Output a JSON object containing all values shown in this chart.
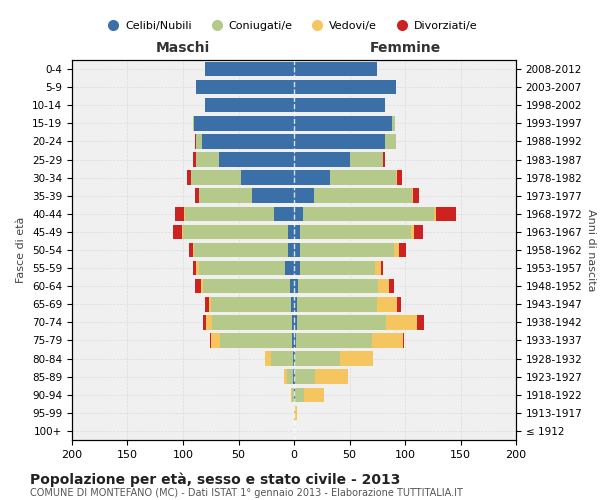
{
  "age_groups": [
    "100+",
    "95-99",
    "90-94",
    "85-89",
    "80-84",
    "75-79",
    "70-74",
    "65-69",
    "60-64",
    "55-59",
    "50-54",
    "45-49",
    "40-44",
    "35-39",
    "30-34",
    "25-29",
    "20-24",
    "15-19",
    "10-14",
    "5-9",
    "0-4"
  ],
  "birth_years": [
    "≤ 1912",
    "1913-1917",
    "1918-1922",
    "1923-1927",
    "1928-1932",
    "1933-1937",
    "1938-1942",
    "1943-1947",
    "1948-1952",
    "1953-1957",
    "1958-1962",
    "1963-1967",
    "1968-1972",
    "1973-1977",
    "1978-1982",
    "1983-1987",
    "1988-1992",
    "1993-1997",
    "1998-2002",
    "2003-2007",
    "2008-2012"
  ],
  "male": {
    "celibi": [
      0,
      0,
      0,
      1,
      1,
      2,
      2,
      3,
      4,
      8,
      5,
      5,
      18,
      38,
      48,
      68,
      83,
      90,
      80,
      88,
      80
    ],
    "coniugati": [
      0,
      0,
      2,
      5,
      20,
      65,
      72,
      72,
      78,
      78,
      85,
      95,
      80,
      48,
      45,
      20,
      5,
      1,
      0,
      0,
      0
    ],
    "vedovi": [
      0,
      0,
      1,
      3,
      5,
      8,
      5,
      2,
      2,
      2,
      1,
      1,
      1,
      0,
      0,
      0,
      0,
      0,
      0,
      0,
      0
    ],
    "divorziati": [
      0,
      0,
      0,
      0,
      0,
      1,
      3,
      3,
      5,
      3,
      4,
      8,
      8,
      3,
      3,
      3,
      1,
      0,
      0,
      0,
      0
    ]
  },
  "female": {
    "nubili": [
      0,
      0,
      1,
      1,
      1,
      2,
      3,
      3,
      4,
      5,
      5,
      5,
      8,
      18,
      32,
      50,
      82,
      88,
      82,
      92,
      75
    ],
    "coniugate": [
      0,
      1,
      8,
      18,
      40,
      68,
      80,
      72,
      72,
      68,
      85,
      100,
      118,
      88,
      60,
      30,
      10,
      3,
      0,
      0,
      0
    ],
    "vedove": [
      0,
      2,
      18,
      30,
      30,
      28,
      28,
      18,
      10,
      5,
      5,
      3,
      2,
      1,
      1,
      0,
      0,
      0,
      0,
      0,
      0
    ],
    "divorziate": [
      0,
      0,
      0,
      0,
      0,
      1,
      6,
      3,
      4,
      2,
      6,
      8,
      18,
      6,
      4,
      2,
      0,
      0,
      0,
      0,
      0
    ]
  },
  "colors": {
    "celibi": "#3a6fa8",
    "coniugati": "#b5c98a",
    "vedovi": "#f5c560",
    "divorziati": "#cc2222"
  },
  "xlim": 200,
  "title": "Popolazione per età, sesso e stato civile - 2013",
  "subtitle": "COMUNE DI MONTEFANO (MC) - Dati ISTAT 1° gennaio 2013 - Elaborazione TUTTITALIA.IT",
  "ylabel_left": "Fasce di età",
  "ylabel_right": "Anni di nascita",
  "xlabel_left": "Maschi",
  "xlabel_right": "Femmine",
  "legend_labels": [
    "Celibi/Nubili",
    "Coniugati/e",
    "Vedovi/e",
    "Divorziati/e"
  ]
}
